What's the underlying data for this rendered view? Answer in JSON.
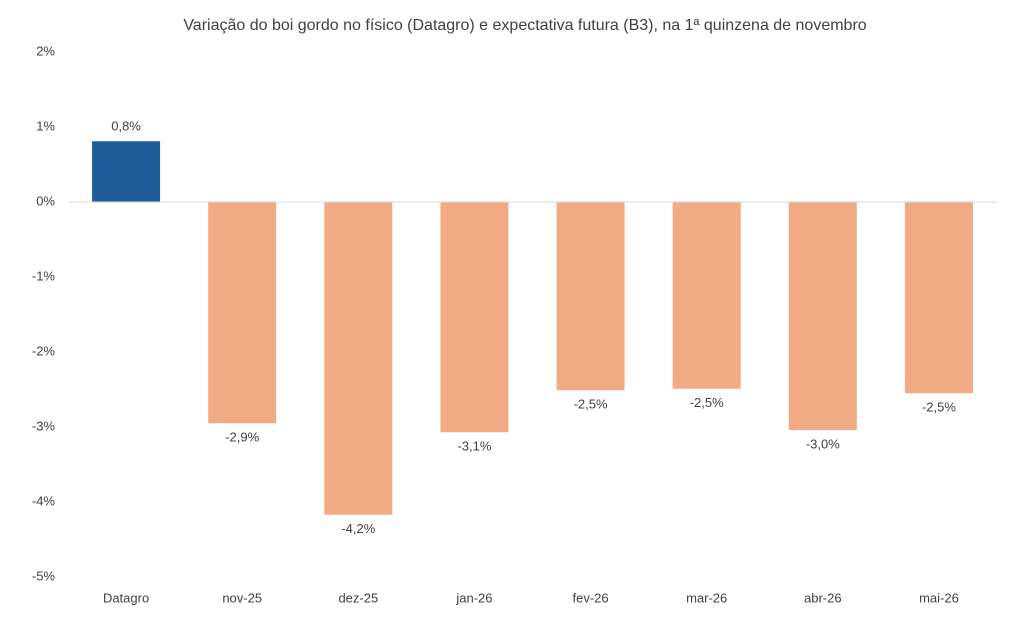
{
  "chart_data": {
    "type": "bar",
    "title": "Variação do boi gordo no físico (Datagro)  e expectativa futura (B3), na 1ª quinzena de novembro",
    "categories": [
      "Datagro",
      "nov-25",
      "dez-25",
      "jan-26",
      "fev-26",
      "mar-26",
      "abr-26",
      "mai-26"
    ],
    "values": [
      0.81,
      -2.95,
      -4.17,
      -3.07,
      -2.51,
      -2.49,
      -3.04,
      -2.55
    ],
    "value_labels": [
      "0,8%",
      "-2,9%",
      "-4,2%",
      "-3,1%",
      "-2,5%",
      "-2,5%",
      "-3,0%",
      "-2,5%"
    ],
    "colors": [
      "#1f5c99",
      "#f2aa84",
      "#f2aa84",
      "#f2aa84",
      "#f2aa84",
      "#f2aa84",
      "#f2aa84",
      "#f2aa84"
    ],
    "ylim": [
      -5,
      2
    ],
    "yticks": [
      {
        "value": -5,
        "label": "-5%"
      },
      {
        "value": -4,
        "label": "-4%"
      },
      {
        "value": -3,
        "label": "-3%"
      },
      {
        "value": -2,
        "label": "-2%"
      },
      {
        "value": -1,
        "label": "-1%"
      },
      {
        "value": 0,
        "label": "0%"
      },
      {
        "value": 1,
        "label": "1%"
      },
      {
        "value": 2,
        "label": "2%"
      }
    ],
    "grid": false
  }
}
